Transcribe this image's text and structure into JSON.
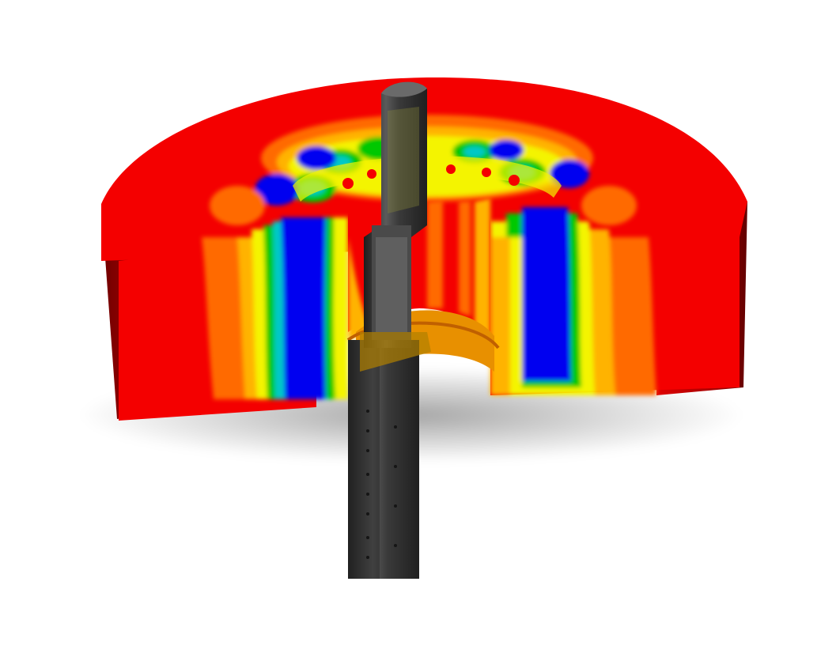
{
  "image": {
    "subject": "cutaway-contour-render",
    "background": "#ffffff",
    "palette": {
      "hot": "#f40000",
      "warm": "#ff6a00",
      "orange": "#ffb300",
      "yellow": "#f4f400",
      "green": "#00c800",
      "cyan": "#00c8c8",
      "cold": "#0000f0",
      "side_dark": "#7a0000",
      "shaft": "#3a3a3a"
    }
  }
}
